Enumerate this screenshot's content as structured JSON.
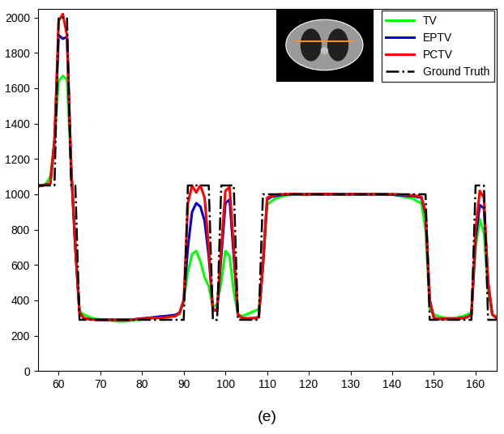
{
  "chart_data": {
    "type": "line",
    "xlabel": "(e)",
    "x": [
      55,
      56,
      57,
      58,
      59,
      60,
      61,
      62,
      63,
      64,
      65,
      66,
      67,
      68,
      69,
      70,
      71,
      72,
      73,
      74,
      75,
      76,
      77,
      78,
      79,
      80,
      81,
      82,
      83,
      84,
      85,
      86,
      87,
      88,
      89,
      90,
      91,
      92,
      93,
      94,
      95,
      96,
      97,
      98,
      99,
      100,
      101,
      102,
      103,
      104,
      105,
      106,
      107,
      108,
      109,
      110,
      111,
      112,
      113,
      114,
      115,
      116,
      117,
      118,
      119,
      120,
      121,
      122,
      123,
      124,
      125,
      126,
      127,
      128,
      129,
      130,
      131,
      132,
      133,
      134,
      135,
      136,
      137,
      138,
      139,
      140,
      141,
      142,
      143,
      144,
      145,
      146,
      147,
      148,
      149,
      150,
      151,
      152,
      153,
      154,
      155,
      156,
      157,
      158,
      159,
      160,
      161,
      162,
      163,
      164,
      165
    ],
    "series": [
      {
        "name": "TV",
        "color": "#00ff00",
        "line_style": "solid",
        "values": [
          1040,
          1050,
          1060,
          1100,
          1300,
          1640,
          1670,
          1650,
          1150,
          700,
          340,
          320,
          310,
          300,
          295,
          290,
          290,
          288,
          285,
          282,
          280,
          282,
          285,
          288,
          290,
          292,
          295,
          298,
          300,
          302,
          305,
          308,
          310,
          315,
          320,
          400,
          560,
          660,
          680,
          620,
          530,
          480,
          360,
          380,
          500,
          680,
          650,
          450,
          320,
          310,
          320,
          330,
          340,
          350,
          600,
          940,
          960,
          975,
          985,
          990,
          995,
          998,
          1000,
          1000,
          1000,
          1000,
          1000,
          1000,
          1000,
          1000,
          1000,
          1000,
          1000,
          1000,
          1000,
          1000,
          1000,
          1000,
          1000,
          1000,
          1000,
          1000,
          1000,
          1000,
          1000,
          1000,
          995,
          990,
          985,
          980,
          975,
          960,
          950,
          800,
          350,
          320,
          310,
          305,
          300,
          300,
          300,
          305,
          310,
          320,
          330,
          700,
          860,
          780,
          450,
          320,
          310
        ]
      },
      {
        "name": "EPTV",
        "color": "#0000cc",
        "line_style": "solid",
        "values": [
          1050,
          1050,
          1055,
          1060,
          1300,
          1900,
          1880,
          1890,
          1150,
          700,
          330,
          300,
          295,
          292,
          290,
          290,
          290,
          290,
          290,
          290,
          290,
          290,
          290,
          292,
          295,
          298,
          300,
          302,
          305,
          308,
          310,
          312,
          315,
          318,
          330,
          400,
          700,
          900,
          950,
          930,
          850,
          650,
          350,
          340,
          650,
          950,
          970,
          650,
          320,
          300,
          298,
          298,
          300,
          305,
          600,
          970,
          985,
          990,
          995,
          998,
          1000,
          1000,
          1000,
          1000,
          1000,
          1000,
          1000,
          1000,
          1000,
          1000,
          1000,
          1000,
          1000,
          1000,
          1000,
          1000,
          1000,
          1000,
          1000,
          1000,
          1000,
          1000,
          1000,
          1000,
          998,
          998,
          995,
          995,
          992,
          990,
          990,
          985,
          980,
          890,
          400,
          300,
          295,
          295,
          295,
          295,
          295,
          298,
          300,
          305,
          320,
          750,
          940,
          920,
          500,
          320,
          300
        ]
      },
      {
        "name": "PCTV",
        "color": "#ff0000",
        "line_style": "solid",
        "values": [
          1050,
          1050,
          1055,
          1060,
          1300,
          1980,
          2020,
          1900,
          1150,
          700,
          330,
          300,
          295,
          292,
          290,
          290,
          290,
          290,
          290,
          290,
          290,
          290,
          290,
          292,
          295,
          295,
          298,
          300,
          300,
          300,
          302,
          305,
          308,
          310,
          330,
          400,
          950,
          1050,
          1010,
          1050,
          980,
          700,
          340,
          350,
          700,
          1020,
          1040,
          700,
          320,
          300,
          298,
          298,
          300,
          305,
          600,
          980,
          990,
          995,
          1000,
          1000,
          1000,
          1002,
          1003,
          1000,
          998,
          1000,
          1002,
          1000,
          1000,
          1003,
          1000,
          1002,
          1000,
          998,
          1000,
          1000,
          1002,
          1000,
          1000,
          1000,
          1000,
          1002,
          1000,
          998,
          1000,
          1000,
          1000,
          998,
          995,
          995,
          995,
          990,
          985,
          900,
          400,
          300,
          295,
          295,
          295,
          295,
          295,
          298,
          300,
          305,
          320,
          800,
          1020,
          980,
          500,
          320,
          300
        ]
      },
      {
        "name": "Ground Truth",
        "color": "#000000",
        "line_style": "dashdot",
        "values": [
          1050,
          1050,
          1050,
          1050,
          1050,
          2000,
          2000,
          2000,
          1050,
          1050,
          290,
          290,
          290,
          290,
          290,
          290,
          290,
          290,
          290,
          290,
          290,
          290,
          290,
          290,
          290,
          290,
          290,
          290,
          290,
          290,
          290,
          290,
          290,
          290,
          290,
          290,
          1050,
          1050,
          1050,
          1050,
          1050,
          1050,
          290,
          290,
          1050,
          1050,
          1050,
          1050,
          290,
          290,
          290,
          290,
          290,
          290,
          1000,
          1000,
          1000,
          1000,
          1000,
          1000,
          1000,
          1000,
          1000,
          1000,
          1000,
          1000,
          1000,
          1000,
          1000,
          1000,
          1000,
          1000,
          1000,
          1000,
          1000,
          1000,
          1000,
          1000,
          1000,
          1000,
          1000,
          1000,
          1000,
          1000,
          1000,
          1000,
          1000,
          1000,
          1000,
          1000,
          1000,
          1000,
          1000,
          1000,
          290,
          290,
          290,
          290,
          290,
          290,
          290,
          290,
          290,
          290,
          290,
          1050,
          1050,
          1050,
          290,
          290,
          290
        ]
      }
    ],
    "xlim": [
      55,
      165
    ],
    "xticks": [
      60,
      70,
      80,
      90,
      100,
      110,
      120,
      130,
      140,
      150,
      160
    ],
    "ylim": [
      0,
      2050
    ],
    "yticks": [
      0,
      200,
      400,
      600,
      800,
      1000,
      1200,
      1400,
      1600,
      1800,
      2000
    ],
    "legend": "upper right",
    "grid": false
  }
}
